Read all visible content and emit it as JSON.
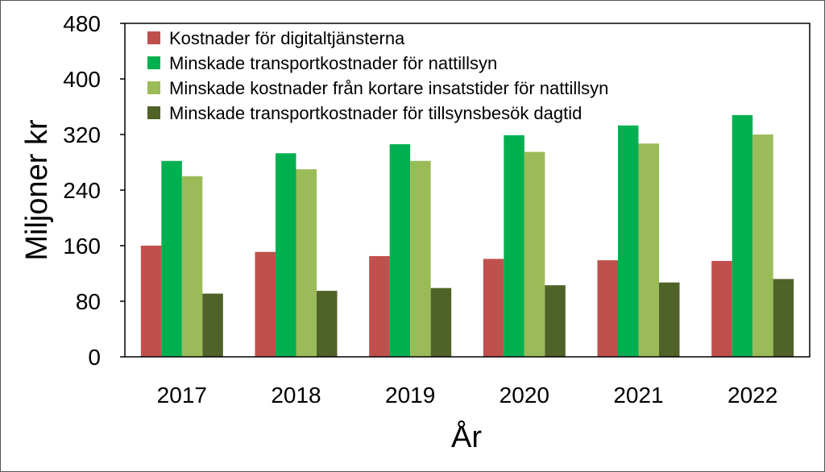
{
  "chart_data": {
    "type": "bar",
    "title": "",
    "xlabel": "År",
    "ylabel": "Miljoner kr",
    "ylim": [
      0,
      480
    ],
    "yticks": [
      0,
      80,
      160,
      240,
      320,
      400,
      480
    ],
    "categories": [
      "2017",
      "2018",
      "2019",
      "2020",
      "2021",
      "2022"
    ],
    "grid": false,
    "legend_position": "top-right",
    "series": [
      {
        "name": "Kostnader för digitaltjänsterna",
        "color": "#c0504d",
        "values": [
          160,
          151,
          145,
          141,
          139,
          138
        ]
      },
      {
        "name": "Minskade transportkostnader för nattillsyn",
        "color": "#00b050",
        "values": [
          282,
          293,
          306,
          319,
          333,
          348
        ]
      },
      {
        "name": "Minskade kostnader från kortare insatstider för nattillsyn",
        "color": "#9bbb59",
        "values": [
          260,
          270,
          282,
          295,
          307,
          320
        ]
      },
      {
        "name": "Minskade transportkostnader för tillsynsbesök dagtid",
        "color": "#4f6228",
        "values": [
          91,
          95,
          99,
          103,
          107,
          112
        ]
      }
    ]
  }
}
